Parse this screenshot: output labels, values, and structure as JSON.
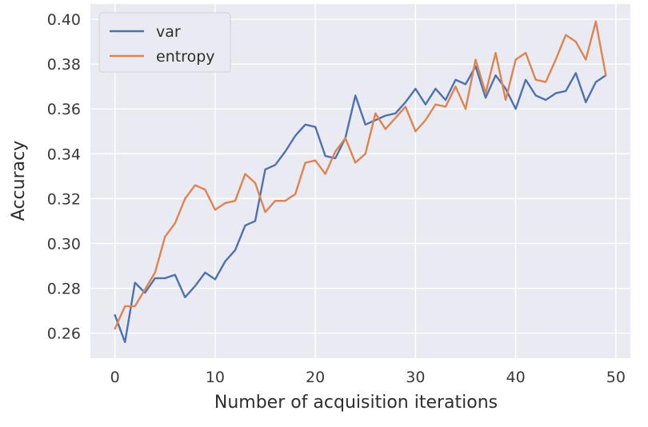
{
  "chart_data": {
    "type": "line",
    "title": "",
    "xlabel": "Number of acquisition iterations",
    "ylabel": "Accuracy",
    "xlim": [
      -2.45,
      51.45
    ],
    "ylim": [
      0.2488,
      0.4068
    ],
    "xticks": [
      0,
      10,
      20,
      30,
      40,
      50
    ],
    "xtick_labels": [
      "0",
      "10",
      "20",
      "30",
      "40",
      "50"
    ],
    "yticks": [
      0.26,
      0.28,
      0.3,
      0.32,
      0.34,
      0.36,
      0.38,
      0.4
    ],
    "ytick_labels": [
      "0.26",
      "0.28",
      "0.30",
      "0.32",
      "0.34",
      "0.36",
      "0.38",
      "0.40"
    ],
    "grid": true,
    "legend_position": "top-left",
    "x": [
      0,
      1,
      2,
      3,
      4,
      5,
      6,
      7,
      8,
      9,
      10,
      11,
      12,
      13,
      14,
      15,
      16,
      17,
      18,
      19,
      20,
      21,
      22,
      23,
      24,
      25,
      26,
      27,
      28,
      29,
      30,
      31,
      32,
      33,
      34,
      35,
      36,
      37,
      38,
      39,
      40,
      41,
      42,
      43,
      44,
      45,
      46,
      47,
      48,
      49
    ],
    "series": [
      {
        "name": "var",
        "color": "#4c72b0",
        "values": [
          0.268,
          0.256,
          0.2825,
          0.278,
          0.2845,
          0.2845,
          0.286,
          0.276,
          0.281,
          0.287,
          0.284,
          0.292,
          0.297,
          0.308,
          0.31,
          0.333,
          0.335,
          0.341,
          0.348,
          0.353,
          0.352,
          0.339,
          0.338,
          0.347,
          0.366,
          0.353,
          0.355,
          0.357,
          0.358,
          0.363,
          0.369,
          0.362,
          0.369,
          0.364,
          0.373,
          0.371,
          0.379,
          0.365,
          0.375,
          0.369,
          0.36,
          0.373,
          0.366,
          0.364,
          0.367,
          0.368,
          0.376,
          0.363,
          0.372,
          0.375
        ]
      },
      {
        "name": "entropy",
        "color": "#dd8452",
        "values": [
          0.262,
          0.272,
          0.272,
          0.2795,
          0.287,
          0.303,
          0.309,
          0.32,
          0.326,
          0.324,
          0.315,
          0.318,
          0.319,
          0.331,
          0.327,
          0.314,
          0.319,
          0.319,
          0.322,
          0.336,
          0.337,
          0.331,
          0.341,
          0.347,
          0.336,
          0.34,
          0.358,
          0.351,
          0.356,
          0.361,
          0.35,
          0.355,
          0.362,
          0.361,
          0.37,
          0.36,
          0.382,
          0.367,
          0.385,
          0.364,
          0.382,
          0.385,
          0.373,
          0.372,
          0.382,
          0.393,
          0.39,
          0.382,
          0.399,
          0.375
        ]
      }
    ]
  }
}
